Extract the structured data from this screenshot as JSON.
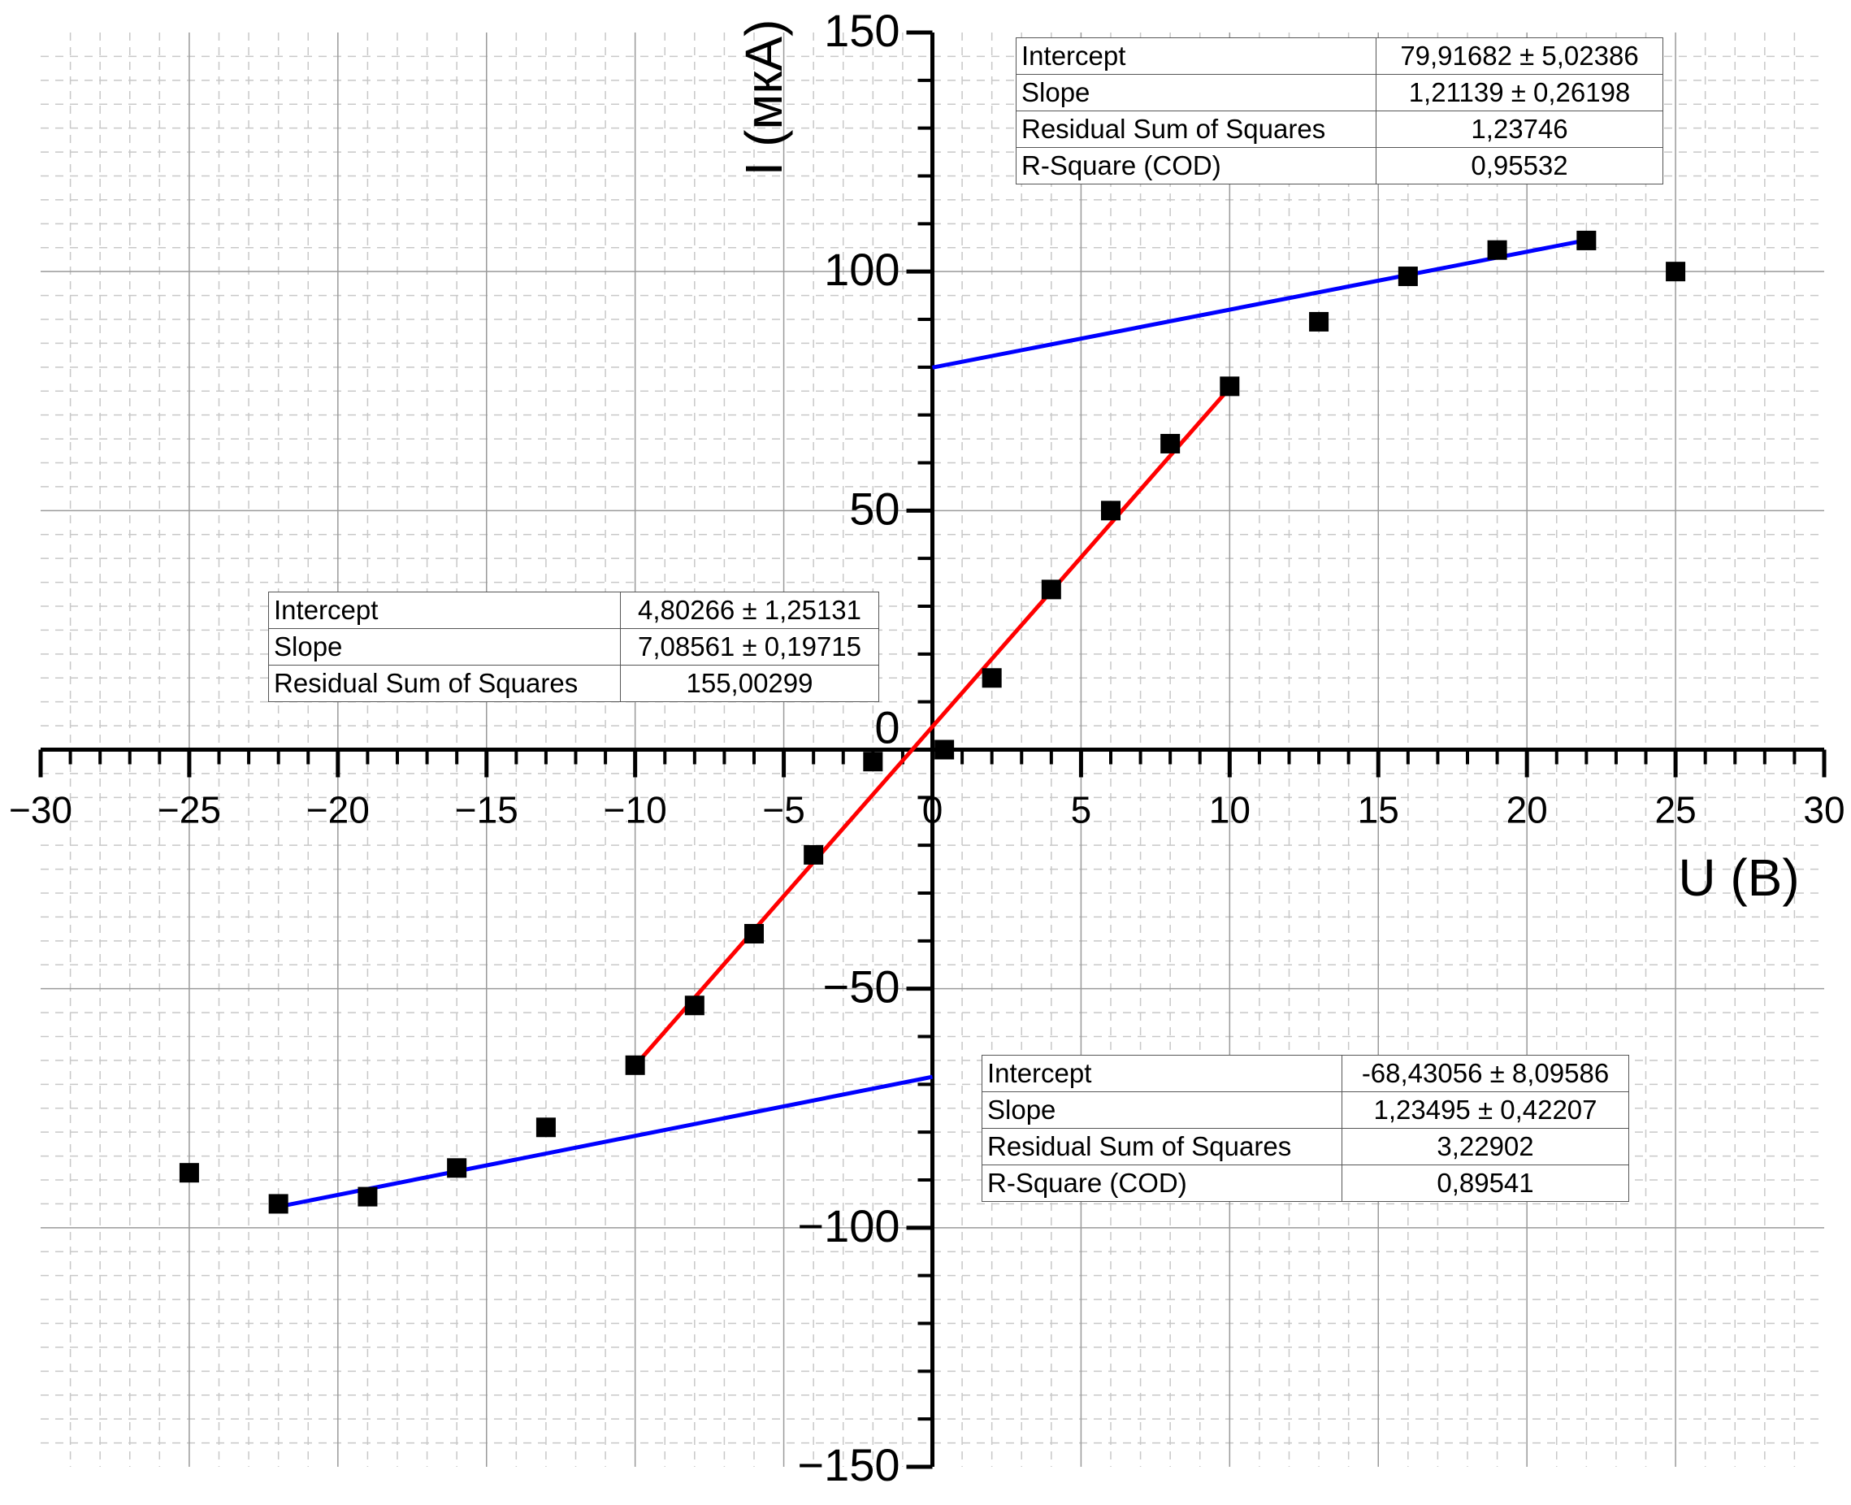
{
  "chart_data": {
    "type": "scatter",
    "title": "",
    "xlabel": "U (В)",
    "ylabel": "I (мкА)",
    "xlim": [
      -30,
      30
    ],
    "ylim": [
      -150,
      150
    ],
    "x_ticks": [
      -30,
      -25,
      -20,
      -15,
      -10,
      -5,
      0,
      5,
      10,
      15,
      20,
      25,
      30
    ],
    "x_tick_labels": [
      "−30",
      "−25",
      "−20",
      "−15",
      "−10",
      "−5",
      "0",
      "5",
      "10",
      "15",
      "20",
      "25",
      "30"
    ],
    "y_ticks": [
      -150,
      -100,
      -50,
      0,
      50,
      100,
      150
    ],
    "y_tick_labels": [
      "−150",
      "−100",
      "−50",
      "0",
      "50",
      "100",
      "150"
    ],
    "grid": true,
    "legend": "none",
    "points": {
      "x": [
        -25,
        -22,
        -19,
        -16,
        -13,
        -10,
        -8,
        -6,
        -4,
        -2,
        0.4,
        2,
        4,
        6,
        8,
        10,
        13,
        16,
        19,
        22,
        25
      ],
      "y": [
        -88.5,
        -95,
        -93.5,
        -87.5,
        -79,
        -66,
        -53.5,
        -38.5,
        -22,
        -2.5,
        0,
        15,
        33.5,
        50,
        64,
        76,
        89.5,
        99,
        104.5,
        106.5,
        100
      ],
      "color": "#000000",
      "marker": "square"
    },
    "fits": [
      {
        "color": "#ff0000",
        "x_range": [
          -10,
          10
        ],
        "intercept": 4.80266,
        "slope": 7.08561
      },
      {
        "color": "#0000ff",
        "x_range": [
          0,
          22
        ],
        "intercept": 79.91682,
        "slope": 1.21139
      },
      {
        "color": "#0000ff",
        "x_range": [
          -22,
          0
        ],
        "intercept": -68.43056,
        "slope": 1.23495
      }
    ],
    "tables": [
      {
        "rows": [
          {
            "label": "Intercept",
            "value": "79,91682 ± 5,02386"
          },
          {
            "label": "Slope",
            "value": "1,21139 ± 0,26198"
          },
          {
            "label": "Residual Sum of Squares",
            "value": "1,23746"
          },
          {
            "label": "R-Square (COD)",
            "value": "0,95532"
          }
        ]
      },
      {
        "rows": [
          {
            "label": "Intercept",
            "value": "4,80266 ± 1,25131"
          },
          {
            "label": "Slope",
            "value": "7,08561 ± 0,19715"
          },
          {
            "label": "Residual Sum of Squares",
            "value": "155,00299"
          }
        ]
      },
      {
        "rows": [
          {
            "label": "Intercept",
            "value": "-68,43056 ± 8,09586"
          },
          {
            "label": "Slope",
            "value": "1,23495 ± 0,42207"
          },
          {
            "label": "Residual Sum of Squares",
            "value": "3,22902"
          },
          {
            "label": "R-Square (COD)",
            "value": "0,89541"
          }
        ]
      }
    ]
  }
}
